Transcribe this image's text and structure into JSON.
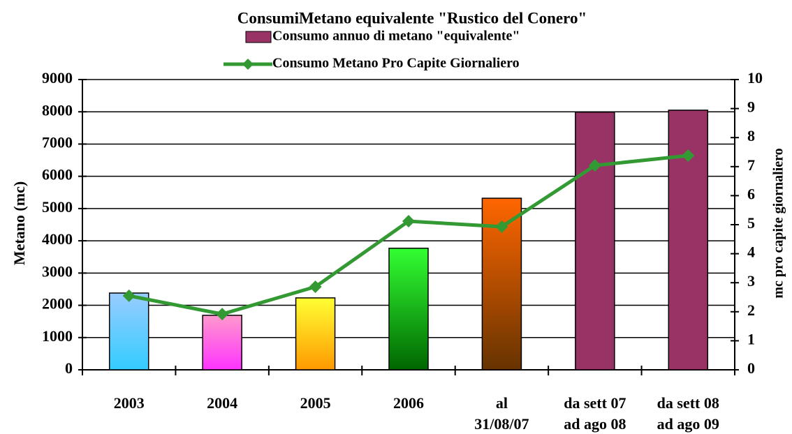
{
  "chart_data": {
    "type": "bar_line",
    "title": "ConsumiMetano equivalente \"Rustico del Conero\"",
    "y_label": "Metano (mc)",
    "y2_label": "mc pro capite giornaliero",
    "categories": [
      "2003",
      "2004",
      "2005",
      "2006",
      "al\n31/08/07",
      "da sett 07\nad ago 08",
      "da sett 08\nad ago 09"
    ],
    "series": [
      {
        "name": "Consumo annuo di metano \"equivalente\"",
        "type": "bar",
        "color": "#993366",
        "values": [
          2380,
          1690,
          2230,
          3770,
          5320,
          7990,
          8050
        ],
        "bar_colors": [
          [
            "#99ccff",
            "#33ccff"
          ],
          [
            "#ff99cc",
            "#ff33ff"
          ],
          [
            "#ffff33",
            "#ff9900"
          ],
          [
            "#33ff33",
            "#006600"
          ],
          [
            "#ff6600",
            "#663300"
          ],
          [
            "#993366",
            "#993366"
          ],
          [
            "#993366",
            "#993366"
          ]
        ]
      },
      {
        "name": "Consumo Metano Pro Capite Giornaliero",
        "type": "line",
        "axis": "y2",
        "color": "#339933",
        "values": [
          2.55,
          1.92,
          2.86,
          5.12,
          4.93,
          7.04,
          7.38
        ]
      }
    ],
    "ylim": [
      0,
      9000
    ],
    "yticks": [
      0,
      1000,
      2000,
      3000,
      4000,
      5000,
      6000,
      7000,
      8000,
      9000
    ],
    "y2lim": [
      0,
      10
    ],
    "y2ticks": [
      0,
      1,
      2,
      3,
      4,
      5,
      6,
      7,
      8,
      9,
      10
    ],
    "grid": true
  }
}
